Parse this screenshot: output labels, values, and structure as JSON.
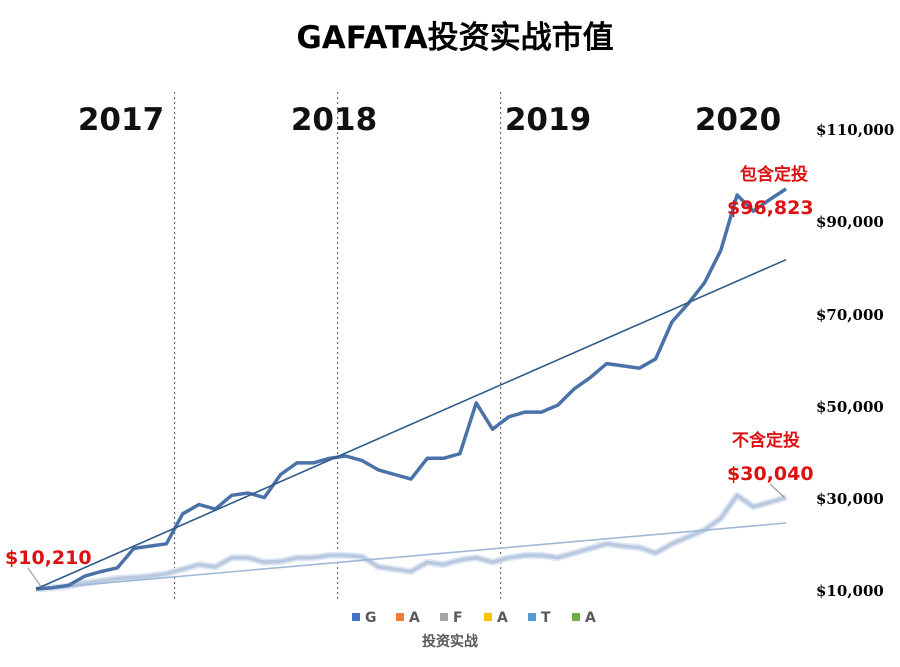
{
  "chart_data": {
    "type": "line",
    "title": "GAFATA投资实战市值",
    "xlabel": "投资实战",
    "ylabel": "",
    "ylim": [
      10000,
      110000
    ],
    "yticks": [
      10000,
      30000,
      50000,
      70000,
      90000,
      110000
    ],
    "ytick_labels": [
      "$10,000",
      "$30,000",
      "$50,000",
      "$70,000",
      "$90,000",
      "$110,000"
    ],
    "year_labels": [
      "2017",
      "2018",
      "2019",
      "2020"
    ],
    "year_dividers_after_index": [
      8,
      18,
      28
    ],
    "legend": [
      {
        "letter": "G",
        "color": "#4472c4"
      },
      {
        "letter": "A",
        "color": "#ed7d31"
      },
      {
        "letter": "F",
        "color": "#a5a5a5"
      },
      {
        "letter": "A",
        "color": "#ffc000"
      },
      {
        "letter": "T",
        "color": "#5b9bd5"
      },
      {
        "letter": "A",
        "color": "#70ad47"
      }
    ],
    "series": [
      {
        "name": "包含定投",
        "color": "#4a72a8",
        "values": [
          10210,
          10500,
          11000,
          13000,
          14000,
          14800,
          19000,
          19500,
          20000,
          26500,
          28500,
          27500,
          30500,
          31000,
          30000,
          35000,
          37500,
          37500,
          38500,
          39000,
          38000,
          36000,
          35000,
          34000,
          38500,
          38500,
          39500,
          50500,
          44800,
          47500,
          48500,
          48500,
          50000,
          53500,
          56000,
          59000,
          58500,
          58000,
          60000,
          68000,
          72000,
          76500,
          83500,
          95500,
          92000,
          94500,
          96823
        ],
        "trend": [
          10210,
          81500
        ]
      },
      {
        "name": "不含定投",
        "color": "#b9c9e0",
        "values": [
          10210,
          10500,
          10800,
          11500,
          12000,
          12500,
          12700,
          13000,
          13500,
          14500,
          15500,
          15000,
          17000,
          17000,
          16000,
          16200,
          17000,
          17000,
          17500,
          17500,
          17200,
          15000,
          14500,
          14000,
          16000,
          15500,
          16500,
          17000,
          16000,
          17000,
          17500,
          17500,
          17000,
          18000,
          19000,
          20000,
          19500,
          19200,
          18000,
          20000,
          21500,
          23000,
          25500,
          30500,
          28000,
          29000,
          30040
        ],
        "trend": [
          10210,
          24500
        ]
      }
    ],
    "annotations": {
      "start_value": "$10,210",
      "with_dca_label": "包含定投",
      "with_dca_value": "$96,823",
      "without_dca_label": "不含定投",
      "without_dca_value": "$30,040"
    }
  }
}
